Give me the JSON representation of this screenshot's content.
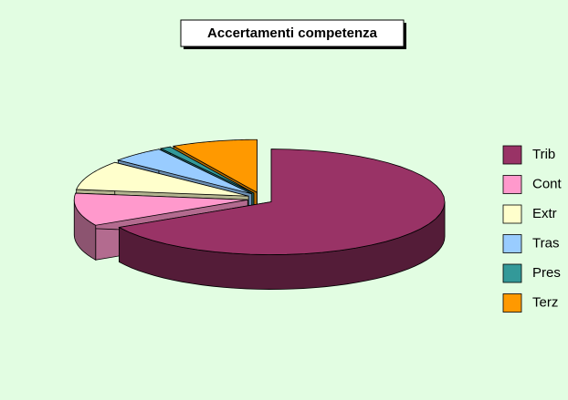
{
  "chart_data": {
    "type": "pie3d",
    "title": "Accertamenti competenza",
    "categories": [
      "Trib",
      "Cont",
      "Extr",
      "Tras",
      "Pres",
      "Terz"
    ],
    "values": [
      67,
      10,
      9,
      5,
      1,
      8
    ],
    "colors": [
      "#993366",
      "#ff99cc",
      "#ffffcc",
      "#99ccff",
      "#339999",
      "#ff9900"
    ],
    "legend": "right"
  }
}
